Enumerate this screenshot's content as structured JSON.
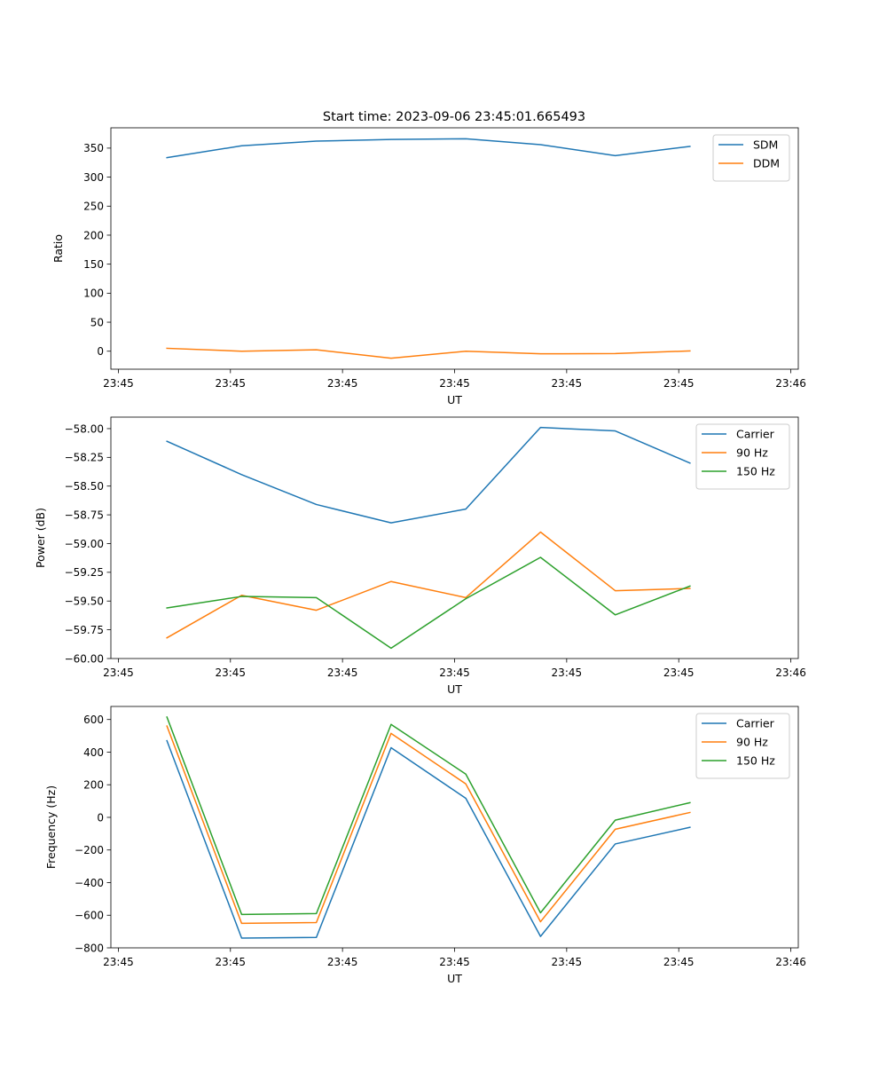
{
  "figure_title": "Start time: 2023-09-06 23:45:01.665493",
  "colors": {
    "c0": "#1f77b4",
    "c1": "#ff7f0e",
    "c2": "#2ca02c"
  },
  "chart_data": [
    {
      "type": "line",
      "title": "Start time: 2023-09-06 23:45:01.665493",
      "xlabel": "UT",
      "ylabel": "Ratio",
      "xlim": [
        -0.6,
        8.6
      ],
      "x": [
        0.15,
        1.15,
        2.15,
        3.15,
        4.15,
        5.15,
        6.15,
        7.15
      ],
      "xticks": [
        -0.5,
        1,
        2.5,
        4,
        5.5,
        7,
        8.5
      ],
      "xticklabels": [
        "23:45",
        "23:45",
        "23:45",
        "23:45",
        "23:45",
        "23:45",
        "23:46"
      ],
      "ylim": [
        -31,
        385
      ],
      "yticks": [
        0,
        50,
        100,
        150,
        200,
        250,
        300,
        350
      ],
      "yticklabels": [
        "0",
        "50",
        "100",
        "150",
        "200",
        "250",
        "300",
        "350"
      ],
      "legend_position": "top-right",
      "series": [
        {
          "name": "SDM",
          "color": "#1f77b4",
          "values": [
            333.5,
            354,
            362,
            365,
            366,
            356,
            337,
            353
          ]
        },
        {
          "name": "DDM",
          "color": "#ff7f0e",
          "values": [
            5,
            0,
            2.5,
            -12,
            0,
            -4.5,
            -4,
            0.5
          ]
        }
      ]
    },
    {
      "type": "line",
      "title": "",
      "xlabel": "UT",
      "ylabel": "Power (dB)",
      "xlim": [
        -0.6,
        8.6
      ],
      "x": [
        0.15,
        1.15,
        2.15,
        3.15,
        4.15,
        5.15,
        6.15,
        7.15
      ],
      "xticks": [
        -0.5,
        1,
        2.5,
        4,
        5.5,
        7,
        8.5
      ],
      "xticklabels": [
        "23:45",
        "23:45",
        "23:45",
        "23:45",
        "23:45",
        "23:45",
        "23:46"
      ],
      "ylim": [
        -60,
        -57.9
      ],
      "yticks": [
        -60.0,
        -59.75,
        -59.5,
        -59.25,
        -59.0,
        -58.75,
        -58.5,
        -58.25,
        -58.0
      ],
      "yticklabels": [
        "−60.00",
        "−59.75",
        "−59.50",
        "−59.25",
        "−59.00",
        "−58.75",
        "−58.50",
        "−58.25",
        "−58.00"
      ],
      "legend_position": "top-right",
      "series": [
        {
          "name": "Carrier",
          "color": "#1f77b4",
          "values": [
            -58.11,
            -58.4,
            -58.66,
            -58.82,
            -58.7,
            -57.99,
            -58.02,
            -58.3
          ]
        },
        {
          "name": "90 Hz",
          "color": "#ff7f0e",
          "values": [
            -59.82,
            -59.45,
            -59.58,
            -59.33,
            -59.47,
            -58.9,
            -59.41,
            -59.39
          ]
        },
        {
          "name": "150 Hz",
          "color": "#2ca02c",
          "values": [
            -59.56,
            -59.46,
            -59.47,
            -59.91,
            -59.48,
            -59.12,
            -59.62,
            -59.37
          ]
        }
      ]
    },
    {
      "type": "line",
      "title": "",
      "xlabel": "UT",
      "ylabel": "Frequency (Hz)",
      "xlim": [
        -0.6,
        8.6
      ],
      "x": [
        0.15,
        1.15,
        2.15,
        3.15,
        4.15,
        5.15,
        6.15,
        7.15
      ],
      "xticks": [
        -0.5,
        1,
        2.5,
        4,
        5.5,
        7,
        8.5
      ],
      "xticklabels": [
        "23:45",
        "23:45",
        "23:45",
        "23:45",
        "23:45",
        "23:45",
        "23:46"
      ],
      "ylim": [
        -800,
        680
      ],
      "yticks": [
        -800,
        -600,
        -400,
        -200,
        0,
        200,
        400,
        600
      ],
      "yticklabels": [
        "−800",
        "−600",
        "−400",
        "−200",
        "0",
        "200",
        "400",
        "600"
      ],
      "legend_position": "top-right",
      "series": [
        {
          "name": "Carrier",
          "color": "#1f77b4",
          "values": [
            470,
            -740,
            -736,
            427,
            117,
            -730,
            -163,
            -61
          ]
        },
        {
          "name": "90 Hz",
          "color": "#ff7f0e",
          "values": [
            560,
            -650,
            -645,
            515,
            205,
            -640,
            -73,
            30
          ]
        },
        {
          "name": "150 Hz",
          "color": "#2ca02c",
          "values": [
            615,
            -595,
            -590,
            570,
            265,
            -585,
            -17,
            90
          ]
        }
      ]
    }
  ]
}
